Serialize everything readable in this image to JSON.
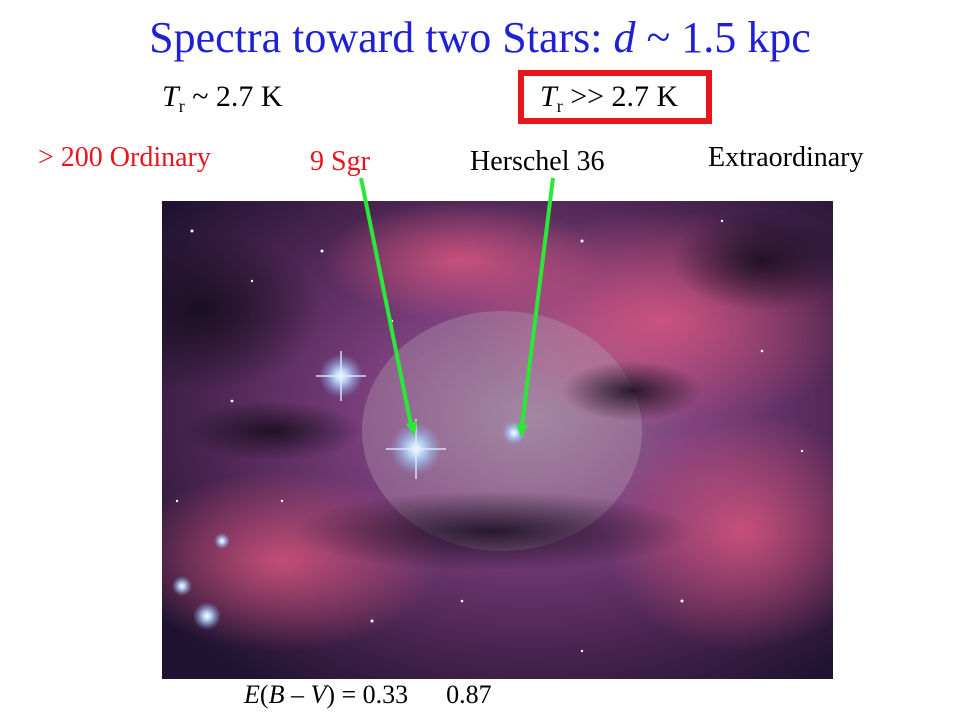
{
  "title": {
    "main": "Spectra toward two Stars: ",
    "var": "d",
    "rest": " ~ 1.5 kpc"
  },
  "temps": {
    "left": {
      "sym": "T",
      "sub": "r",
      "rest": " ~ 2.7 K"
    },
    "right": {
      "sym": "T",
      "sub": "r",
      "rest": " >> 2.7 K"
    }
  },
  "labels": {
    "ordinary": "> 200 Ordinary",
    "sgr": "9 Sgr",
    "herschel": "Herschel 36",
    "extraordinary": "Extraordinary"
  },
  "ebv": {
    "e": "E",
    "open": "(",
    "b": "B",
    "dash": " – ",
    "v": "V",
    "close": ") = 0.33",
    "second": "0.87"
  },
  "colors": {
    "title": "#1f1fd6",
    "red": "#e8161c",
    "arrow": "#29e838",
    "nebula": "#5a2a5e"
  }
}
